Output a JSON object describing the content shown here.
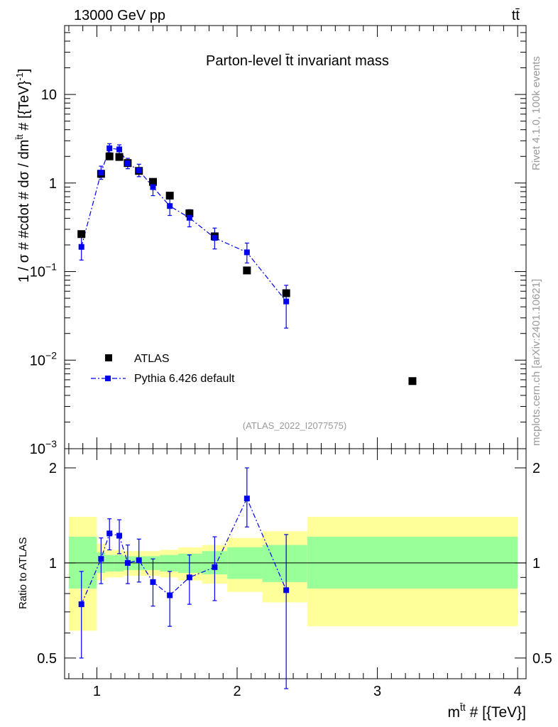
{
  "header": {
    "left": "13000 GeV pp",
    "right": "tt̄"
  },
  "side_labels": {
    "rivet": "Rivet 4.1.0,  100k events",
    "mcplots": "mcplots.cern.ch [arXiv:2401.10621]"
  },
  "chart_data": [
    {
      "type": "scatter",
      "title": "Parton-level t̄t invariant mass",
      "watermark": "(ATLAS_2022_I2077575)",
      "ylabel": "1 / σ # #cdot # dσ / dm",
      "ylabel_sup": "t̄t",
      "ylabel_tail": " # [{TeV}",
      "ylabel_tail_sup": "-1",
      "ylabel_end": "]",
      "yscale": "log",
      "ylim": [
        0.001,
        60
      ],
      "xlim": [
        0.77,
        4.06
      ],
      "yticks": [
        {
          "v": 10,
          "label": "10"
        },
        {
          "v": 1,
          "label": "1"
        },
        {
          "v": 0.1,
          "base": "10",
          "exp": "−1"
        },
        {
          "v": 0.01,
          "base": "10",
          "exp": "−2"
        },
        {
          "v": 0.001,
          "base": "10",
          "exp": "−3"
        }
      ],
      "legend": [
        {
          "name": "ATLAS",
          "style": "black-square"
        },
        {
          "name": "Pythia 6.426 default",
          "style": "blue-dashdot-square"
        }
      ],
      "series": [
        {
          "name": "ATLAS",
          "color": "#000000",
          "points": [
            {
              "x": 0.89,
              "y": 0.265
            },
            {
              "x": 1.03,
              "y": 1.27
            },
            {
              "x": 1.09,
              "y": 2.0
            },
            {
              "x": 1.16,
              "y": 1.97
            },
            {
              "x": 1.22,
              "y": 1.68
            },
            {
              "x": 1.3,
              "y": 1.37
            },
            {
              "x": 1.4,
              "y": 1.03
            },
            {
              "x": 1.52,
              "y": 0.72
            },
            {
              "x": 1.66,
              "y": 0.455
            },
            {
              "x": 1.84,
              "y": 0.25
            },
            {
              "x": 2.07,
              "y": 0.103
            },
            {
              "x": 2.35,
              "y": 0.057
            },
            {
              "x": 3.25,
              "y": 0.0058
            }
          ]
        },
        {
          "name": "Pythia 6.426 default",
          "color": "#0000ee",
          "points": [
            {
              "x": 0.89,
              "y": 0.19,
              "lo": 0.135,
              "hi": 0.255
            },
            {
              "x": 1.03,
              "y": 1.31,
              "lo": 1.1,
              "hi": 1.55
            },
            {
              "x": 1.09,
              "y": 2.47,
              "lo": 2.2,
              "hi": 2.78
            },
            {
              "x": 1.16,
              "y": 2.4,
              "lo": 2.12,
              "hi": 2.7
            },
            {
              "x": 1.22,
              "y": 1.67,
              "lo": 1.45,
              "hi": 1.9
            },
            {
              "x": 1.3,
              "y": 1.39,
              "lo": 1.18,
              "hi": 1.63
            },
            {
              "x": 1.4,
              "y": 0.9,
              "lo": 0.72,
              "hi": 1.1
            },
            {
              "x": 1.52,
              "y": 0.55,
              "lo": 0.43,
              "hi": 0.68
            },
            {
              "x": 1.66,
              "y": 0.405,
              "lo": 0.32,
              "hi": 0.5
            },
            {
              "x": 1.84,
              "y": 0.24,
              "lo": 0.18,
              "hi": 0.31
            },
            {
              "x": 2.07,
              "y": 0.165,
              "lo": 0.125,
              "hi": 0.21
            },
            {
              "x": 2.35,
              "y": 0.046,
              "lo": 0.023,
              "hi": 0.07
            }
          ]
        }
      ]
    },
    {
      "type": "scatter",
      "ylabel": "Ratio to ATLAS",
      "xlabel": "m",
      "xlabel_sup": "t̄t",
      "xlabel_tail": " # [{TeV}]",
      "ylim": [
        0.43,
        2.3
      ],
      "xlim": [
        0.77,
        4.06
      ],
      "xticks": [
        {
          "v": 1,
          "label": "1"
        },
        {
          "v": 2,
          "label": "2"
        },
        {
          "v": 3,
          "label": "3"
        },
        {
          "v": 4,
          "label": "4"
        }
      ],
      "yticks": [
        {
          "v": 2,
          "label": "2"
        },
        {
          "v": 1,
          "label": "1"
        },
        {
          "v": 0.5,
          "label": "0.5"
        }
      ],
      "bands": {
        "inner_color": "#99ff99",
        "outer_color": "#ffff99",
        "bins": [
          {
            "x0": 0.8,
            "x1": 1.0,
            "in_lo": 0.83,
            "in_hi": 1.21,
            "out_lo": 0.61,
            "out_hi": 1.4
          },
          {
            "x0": 1.0,
            "x1": 1.06,
            "in_lo": 0.93,
            "in_hi": 1.08,
            "out_lo": 0.88,
            "out_hi": 1.15
          },
          {
            "x0": 1.06,
            "x1": 1.12,
            "in_lo": 0.94,
            "in_hi": 1.06,
            "out_lo": 0.9,
            "out_hi": 1.1
          },
          {
            "x0": 1.12,
            "x1": 1.19,
            "in_lo": 0.94,
            "in_hi": 1.06,
            "out_lo": 0.9,
            "out_hi": 1.1
          },
          {
            "x0": 1.19,
            "x1": 1.25,
            "in_lo": 0.95,
            "in_hi": 1.05,
            "out_lo": 0.91,
            "out_hi": 1.09
          },
          {
            "x0": 1.25,
            "x1": 1.35,
            "in_lo": 0.95,
            "in_hi": 1.05,
            "out_lo": 0.91,
            "out_hi": 1.09
          },
          {
            "x0": 1.35,
            "x1": 1.45,
            "in_lo": 0.95,
            "in_hi": 1.05,
            "out_lo": 0.91,
            "out_hi": 1.09
          },
          {
            "x0": 1.45,
            "x1": 1.58,
            "in_lo": 0.94,
            "in_hi": 1.06,
            "out_lo": 0.9,
            "out_hi": 1.1
          },
          {
            "x0": 1.58,
            "x1": 1.75,
            "in_lo": 0.93,
            "in_hi": 1.07,
            "out_lo": 0.88,
            "out_hi": 1.12
          },
          {
            "x0": 1.75,
            "x1": 1.93,
            "in_lo": 0.92,
            "in_hi": 1.09,
            "out_lo": 0.86,
            "out_hi": 1.14
          },
          {
            "x0": 1.93,
            "x1": 2.18,
            "in_lo": 0.89,
            "in_hi": 1.12,
            "out_lo": 0.81,
            "out_hi": 1.2
          },
          {
            "x0": 2.18,
            "x1": 2.5,
            "in_lo": 0.87,
            "in_hi": 1.14,
            "out_lo": 0.75,
            "out_hi": 1.26
          },
          {
            "x0": 2.5,
            "x1": 4.0,
            "in_lo": 0.83,
            "in_hi": 1.21,
            "out_lo": 0.63,
            "out_hi": 1.4
          }
        ]
      },
      "series": [
        {
          "name": "Pythia 6.426 default",
          "color": "#0000ee",
          "points": [
            {
              "x": 0.89,
              "y": 0.74,
              "lo": 0.5,
              "hi": 0.94
            },
            {
              "x": 1.03,
              "y": 1.03,
              "lo": 0.86,
              "hi": 1.2
            },
            {
              "x": 1.09,
              "y": 1.24,
              "lo": 1.1,
              "hi": 1.38
            },
            {
              "x": 1.16,
              "y": 1.22,
              "lo": 1.07,
              "hi": 1.37
            },
            {
              "x": 1.22,
              "y": 1.0,
              "lo": 0.86,
              "hi": 1.14
            },
            {
              "x": 1.3,
              "y": 1.02,
              "lo": 0.87,
              "hi": 1.19
            },
            {
              "x": 1.4,
              "y": 0.87,
              "lo": 0.73,
              "hi": 1.03
            },
            {
              "x": 1.52,
              "y": 0.79,
              "lo": 0.63,
              "hi": 0.94
            },
            {
              "x": 1.66,
              "y": 0.9,
              "lo": 0.74,
              "hi": 1.06
            },
            {
              "x": 1.84,
              "y": 0.97,
              "lo": 0.76,
              "hi": 1.21
            },
            {
              "x": 2.07,
              "y": 1.6,
              "lo": 1.3,
              "hi": 2.0
            },
            {
              "x": 2.35,
              "y": 0.82,
              "lo": 0.4,
              "hi": 1.23
            }
          ]
        }
      ]
    }
  ]
}
